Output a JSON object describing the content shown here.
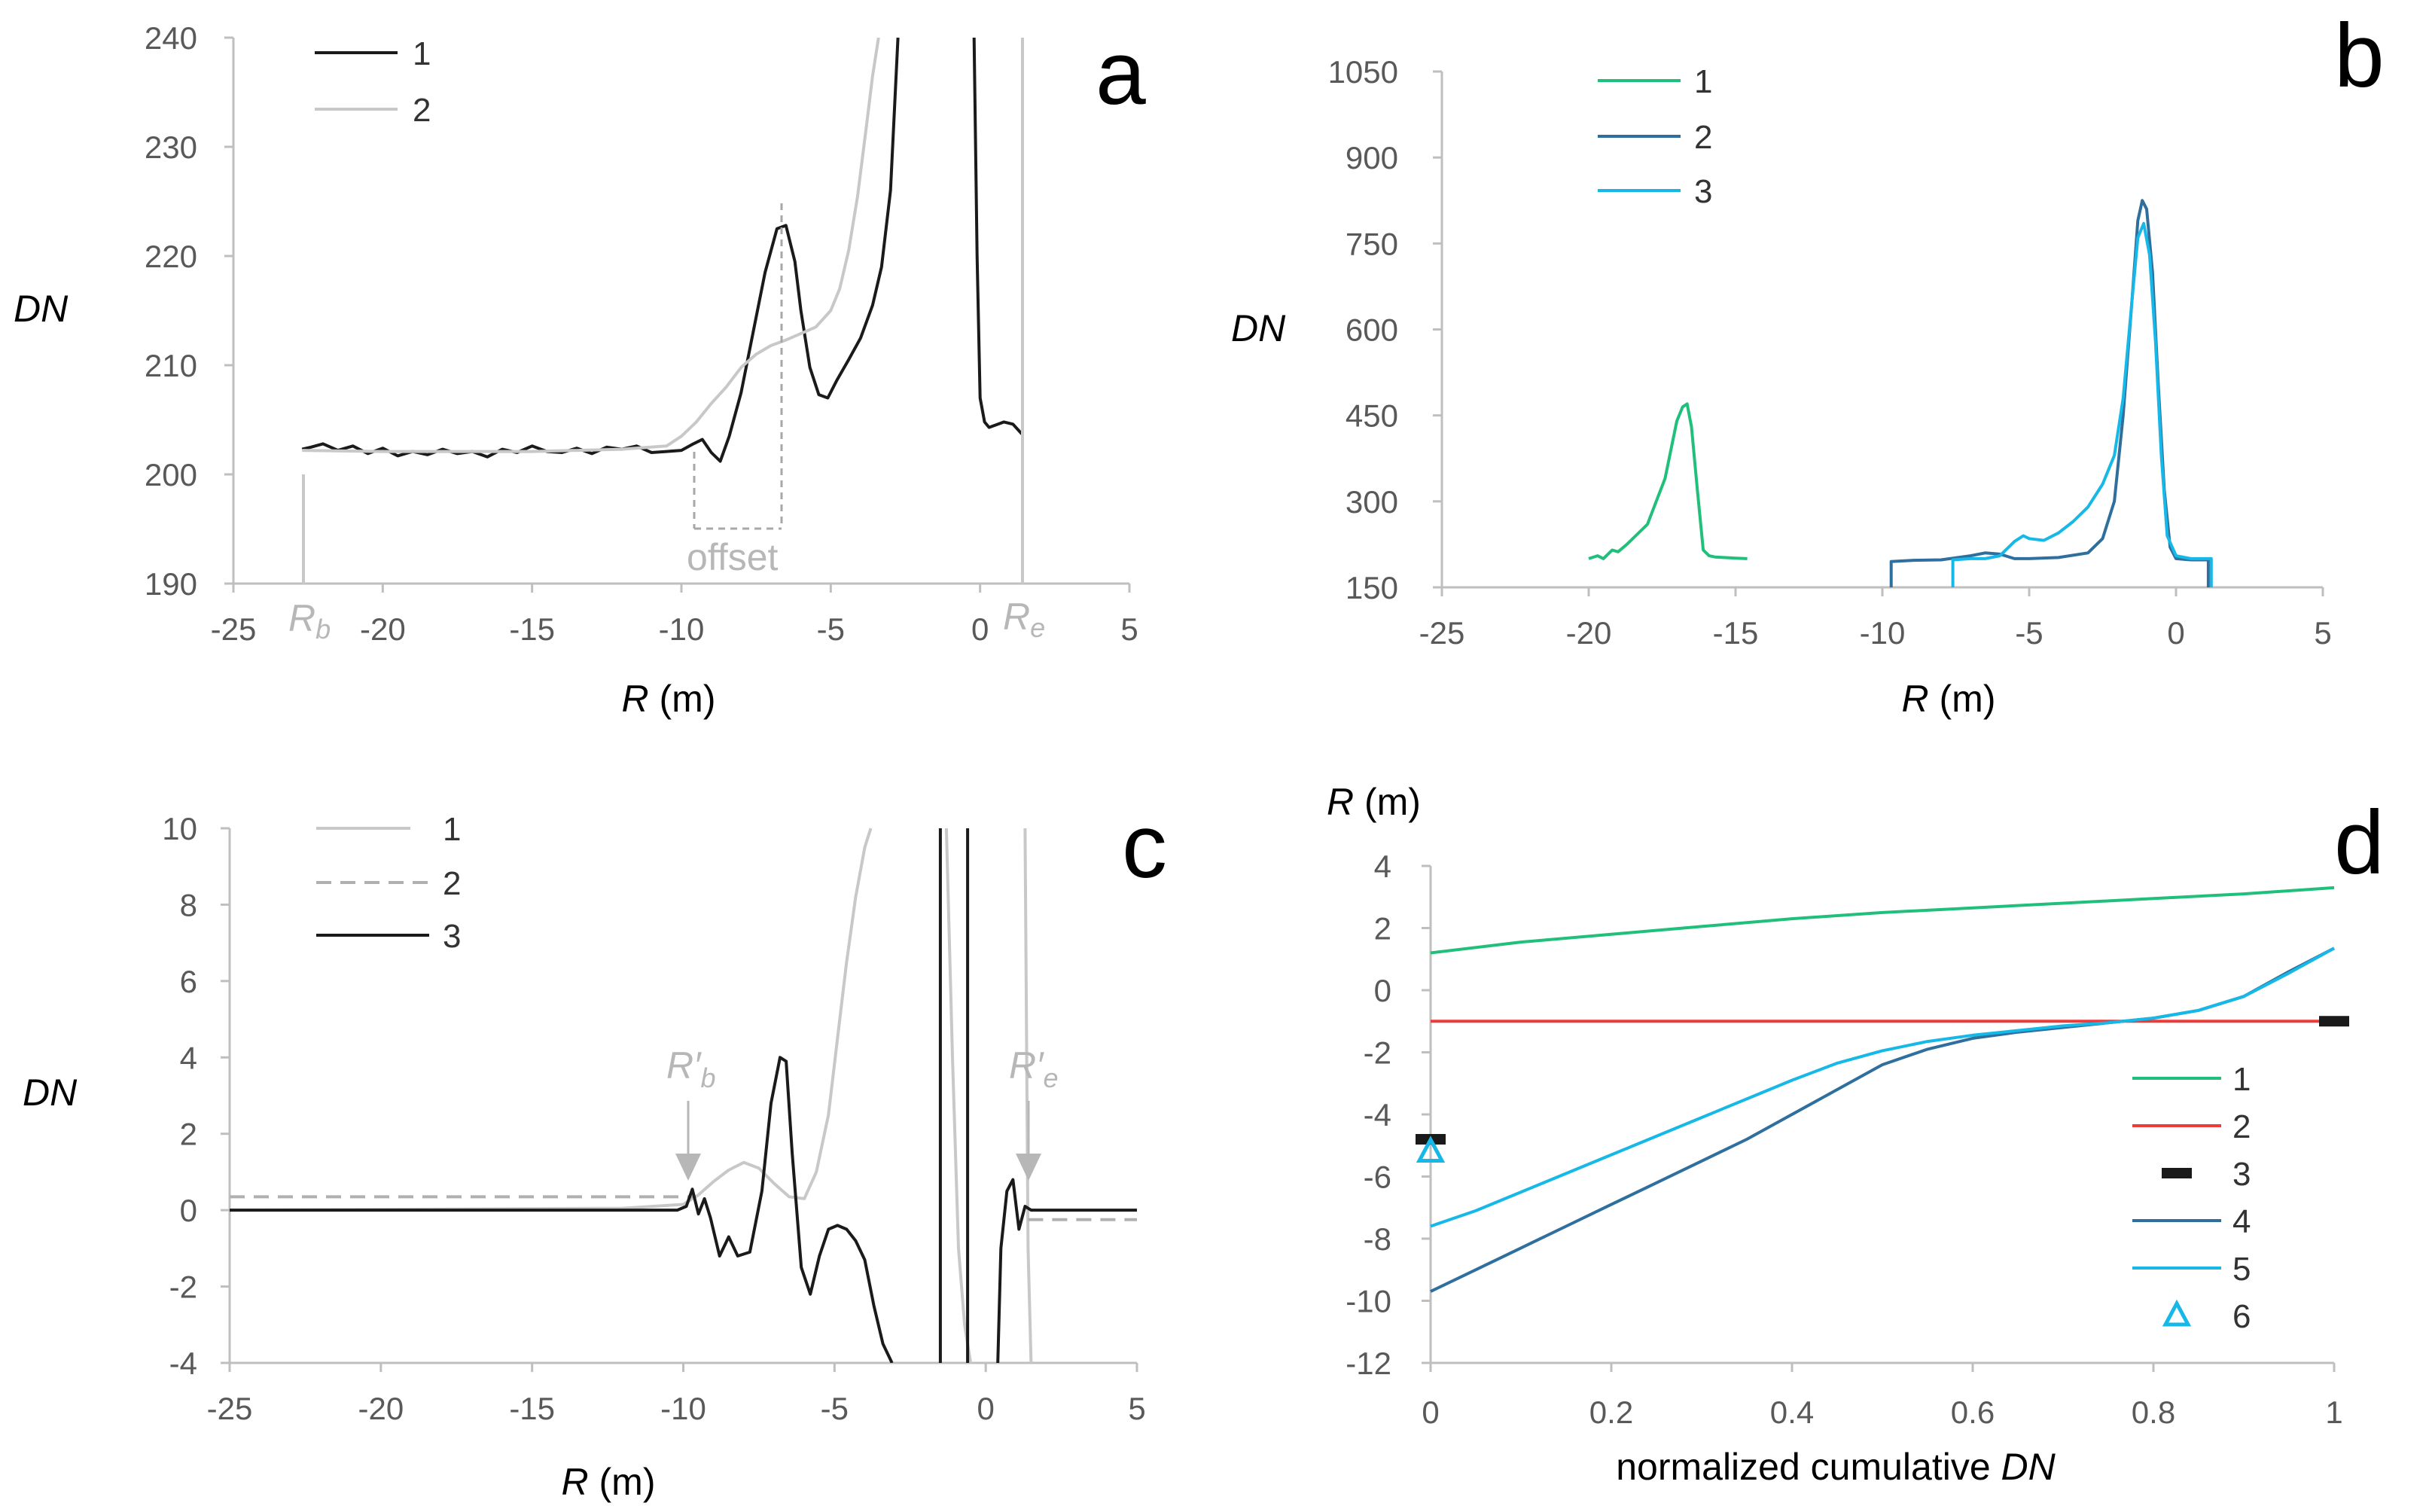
{
  "colors": {
    "black": "#1a1a1a",
    "lightgray": "#c8c8c8",
    "midgray": "#b0b0b0",
    "green": "#20c07a",
    "steel": "#2e6f9e",
    "cyan": "#16b8e8",
    "red": "#ef3a3a",
    "axis": "#bfbfbf",
    "tick": "#595959"
  },
  "chart_data": [
    {
      "panel": "a",
      "type": "line",
      "xlabel_var": "R",
      "xlabel_unit": " (m)",
      "ylabel": "DN",
      "xlim": [
        -25,
        5
      ],
      "ylim": [
        190,
        240
      ],
      "xticks": [
        -25,
        -20,
        -15,
        -10,
        -5,
        0,
        5
      ],
      "yticks": [
        190,
        200,
        210,
        220,
        230,
        240
      ],
      "legend_position": "top-left",
      "series": [
        {
          "name": "1",
          "color": "black",
          "x": [
            -22.7,
            -22.4,
            -22,
            -21.5,
            -21,
            -20.5,
            -20,
            -19.5,
            -19,
            -18.5,
            -18,
            -17.5,
            -17,
            -16.5,
            -16,
            -15.5,
            -15,
            -14.5,
            -14,
            -13.5,
            -13,
            -12.5,
            -12,
            -11.5,
            -11,
            -10.5,
            -10,
            -9.6,
            -9.3,
            -9,
            -8.7,
            -8.4,
            -8,
            -7.6,
            -7.2,
            -6.8,
            -6.5,
            -6.2,
            -6,
            -5.7,
            -5.4,
            -5.1,
            -4.8,
            -4.4,
            -4,
            -3.6,
            -3.3,
            -3,
            -2.75
          ],
          "y": [
            202.3,
            202.5,
            202.8,
            202.2,
            202.6,
            201.9,
            202.4,
            201.7,
            202.1,
            201.8,
            202.3,
            201.9,
            202.1,
            201.6,
            202.3,
            202.0,
            202.6,
            202.1,
            202.0,
            202.4,
            201.9,
            202.5,
            202.3,
            202.6,
            202.0,
            202.1,
            202.2,
            202.8,
            203.2,
            202.0,
            201.2,
            203.5,
            207.5,
            213.0,
            218.5,
            222.5,
            222.8,
            219.5,
            215.0,
            209.8,
            207.3,
            207.0,
            208.6,
            210.5,
            212.5,
            215.5,
            219.0,
            226.0,
            240.0
          ]
        },
        {
          "name": "1",
          "color": "black",
          "x": [
            -0.2,
            -0.1,
            0,
            0.15,
            0.3,
            0.5,
            0.8,
            1.1,
            1.4
          ],
          "y": [
            240,
            220,
            207,
            204.8,
            204.3,
            204.5,
            204.8,
            204.6,
            203.7
          ]
        },
        {
          "name": "2",
          "color": "lightgray",
          "x": [
            -22.7,
            -20,
            -15,
            -12,
            -10.5,
            -10,
            -9.5,
            -9,
            -8.5,
            -8,
            -7.5,
            -7,
            -6.5,
            -6,
            -5.5,
            -5,
            -4.7,
            -4.4,
            -4.1,
            -3.8,
            -3.6,
            -3.4
          ],
          "y": [
            202.2,
            202.1,
            202.1,
            202.3,
            202.6,
            203.5,
            204.8,
            206.5,
            208.0,
            209.8,
            211.0,
            211.8,
            212.3,
            212.9,
            213.5,
            215.0,
            217.0,
            220.5,
            225.5,
            232.0,
            236.5,
            240.0
          ]
        }
      ],
      "annotations": {
        "offset": "offset",
        "rb_main": "R",
        "rb_sub": "b",
        "re_main": "R",
        "re_sub": "e"
      }
    },
    {
      "panel": "b",
      "type": "line",
      "xlabel_var": "R",
      "xlabel_unit": " (m)",
      "ylabel": "DN",
      "xlim": [
        -25,
        5
      ],
      "ylim": [
        150,
        1050
      ],
      "xticks": [
        -25,
        -20,
        -15,
        -10,
        -5,
        0,
        5
      ],
      "yticks": [
        150,
        300,
        450,
        600,
        750,
        900,
        1050
      ],
      "legend_position": "top-left",
      "series": [
        {
          "name": "1",
          "color": "green",
          "x": [
            -20,
            -19.7,
            -19.5,
            -19.2,
            -19,
            -18.7,
            -18.4,
            -18,
            -17.7,
            -17.4,
            -17.2,
            -17,
            -16.8,
            -16.65,
            -16.5,
            -16.3,
            -16.1,
            -15.9,
            -15.7,
            -15.4,
            -15,
            -14.6
          ],
          "y": [
            200,
            205,
            200,
            215,
            212,
            225,
            240,
            260,
            300,
            340,
            390,
            440,
            465,
            470,
            430,
            320,
            215,
            205,
            203,
            202,
            201,
            200
          ]
        },
        {
          "name": "2",
          "color": "steel",
          "x": [
            -9.7,
            -9.7,
            -9,
            -8,
            -7,
            -6.5,
            -6,
            -5.5,
            -5,
            -4,
            -3,
            -2.5,
            -2.1,
            -1.8,
            -1.5,
            -1.3,
            -1.15,
            -1,
            -0.8,
            -0.6,
            -0.4,
            -0.2,
            0,
            0.5,
            1.1,
            1.1
          ],
          "y": [
            150,
            195,
            197,
            198,
            205,
            210,
            208,
            200,
            200,
            202,
            210,
            235,
            300,
            450,
            650,
            790,
            825,
            810,
            700,
            500,
            320,
            220,
            200,
            198,
            198,
            150
          ]
        },
        {
          "name": "3",
          "color": "cyan",
          "x": [
            -7.6,
            -7.6,
            -7,
            -6.5,
            -6,
            -5.7,
            -5.5,
            -5.2,
            -5,
            -4.5,
            -4,
            -3.5,
            -3,
            -2.5,
            -2.1,
            -1.8,
            -1.5,
            -1.3,
            -1.1,
            -0.9,
            -0.7,
            -0.5,
            -0.3,
            0,
            0.5,
            1.2,
            1.2
          ],
          "y": [
            150,
            198,
            200,
            200,
            205,
            220,
            230,
            240,
            235,
            232,
            245,
            265,
            290,
            330,
            380,
            480,
            650,
            760,
            785,
            730,
            580,
            380,
            240,
            205,
            200,
            200,
            150
          ]
        }
      ]
    },
    {
      "panel": "c",
      "type": "line",
      "xlabel_var": "R",
      "xlabel_unit": " (m)",
      "ylabel": "DN",
      "xlim": [
        -25,
        5
      ],
      "ylim": [
        -4,
        10
      ],
      "xticks": [
        -25,
        -20,
        -15,
        -10,
        -5,
        0,
        5
      ],
      "yticks": [
        -4,
        -2,
        0,
        2,
        4,
        6,
        8,
        10
      ],
      "legend_position": "top-left",
      "series": [
        {
          "name": "1",
          "color": "lightgray",
          "x": [
            -25,
            -12,
            -10,
            -9.5,
            -9,
            -8.5,
            -8,
            -7.5,
            -7,
            -6.5,
            -6,
            -5.6,
            -5.2,
            -4.9,
            -4.6,
            -4.3,
            -4,
            -3.8
          ],
          "y": [
            0,
            0.05,
            0.15,
            0.4,
            0.75,
            1.05,
            1.25,
            1.1,
            0.7,
            0.35,
            0.3,
            1.0,
            2.5,
            4.5,
            6.5,
            8.2,
            9.5,
            10
          ]
        },
        {
          "name": "1",
          "color": "lightgray",
          "x": [
            -1.3,
            -1.1,
            -0.9,
            -0.7,
            -0.5
          ],
          "y": [
            10,
            4,
            -1,
            -3,
            -4
          ]
        },
        {
          "name": "1",
          "color": "lightgray",
          "x": [
            1.3,
            1.4,
            1.5
          ],
          "y": [
            10,
            -1,
            -4
          ]
        },
        {
          "name": "2",
          "color": "midgray",
          "dashed": true,
          "x": [
            -25,
            -9.6
          ],
          "y": [
            0.35,
            0.35
          ]
        },
        {
          "name": "2",
          "color": "midgray",
          "dashed": true,
          "x": [
            1.4,
            5
          ],
          "y": [
            -0.25,
            -0.25
          ]
        },
        {
          "name": "3",
          "color": "black",
          "x": [
            -25,
            -12,
            -10.2,
            -9.9,
            -9.7,
            -9.5,
            -9.3,
            -9.1,
            -8.8,
            -8.5,
            -8.2,
            -7.8,
            -7.4,
            -7.1,
            -6.8,
            -6.6,
            -6.4,
            -6.1,
            -5.8,
            -5.5,
            -5.2,
            -4.9,
            -4.6,
            -4.3,
            -4,
            -3.7,
            -3.4,
            -3.1
          ],
          "y": [
            0,
            0,
            0,
            0.1,
            0.55,
            -0.1,
            0.3,
            -0.2,
            -1.2,
            -0.7,
            -1.2,
            -1.1,
            0.5,
            2.8,
            4.0,
            3.9,
            1.5,
            -1.5,
            -2.2,
            -1.2,
            -0.5,
            -0.4,
            -0.5,
            -0.8,
            -1.3,
            -2.5,
            -3.5,
            -4
          ]
        },
        {
          "name": "3",
          "color": "black",
          "x": [
            -1.5,
            -1.5
          ],
          "y": [
            10,
            -4
          ]
        },
        {
          "name": "3",
          "color": "black",
          "x": [
            -0.6,
            -0.6
          ],
          "y": [
            10,
            -4
          ]
        },
        {
          "name": "3",
          "color": "black",
          "x": [
            0.4,
            0.5,
            0.7,
            0.9,
            1.1,
            1.3,
            1.5,
            2,
            3,
            5
          ],
          "y": [
            -4,
            -1,
            0.5,
            0.8,
            -0.5,
            0.1,
            0,
            0,
            0,
            0
          ]
        }
      ],
      "annotations": {
        "rb_main": "R′",
        "rb_sub": "b",
        "re_main": "R′",
        "re_sub": "e"
      }
    },
    {
      "panel": "d",
      "type": "line",
      "xlabel": "normalized cumulative ",
      "xlabel_var": "DN",
      "ylabel_var": "R",
      "ylabel_unit": " (m)",
      "xlim": [
        0,
        1
      ],
      "ylim": [
        -12,
        4
      ],
      "xticks": [
        0,
        0.2,
        0.4,
        0.6,
        0.8,
        1
      ],
      "yticks": [
        -12,
        -10,
        -8,
        -6,
        -4,
        -2,
        0,
        2,
        4
      ],
      "legend_position": "bottom-right",
      "series": [
        {
          "name": "1",
          "color": "green",
          "x": [
            0,
            0.1,
            0.2,
            0.3,
            0.4,
            0.5,
            0.6,
            0.7,
            0.8,
            0.9,
            1.0
          ],
          "y": [
            1.2,
            1.55,
            1.8,
            2.05,
            2.3,
            2.5,
            2.65,
            2.8,
            2.95,
            3.1,
            3.3
          ]
        },
        {
          "name": "2",
          "color": "red",
          "x": [
            0,
            1.0
          ],
          "y": [
            -1.0,
            -1.0
          ]
        },
        {
          "name": "4",
          "color": "steel",
          "x": [
            0,
            0.05,
            0.1,
            0.15,
            0.2,
            0.25,
            0.3,
            0.35,
            0.4,
            0.45,
            0.5,
            0.55,
            0.6,
            0.65,
            0.7,
            0.75,
            0.8,
            0.85,
            0.9,
            0.95,
            1.0
          ],
          "y": [
            -9.7,
            -9.0,
            -8.3,
            -7.6,
            -6.9,
            -6.2,
            -5.5,
            -4.8,
            -4.0,
            -3.2,
            -2.4,
            -1.9,
            -1.55,
            -1.35,
            -1.2,
            -1.05,
            -0.9,
            -0.65,
            -0.2,
            0.6,
            1.35
          ]
        },
        {
          "name": "5",
          "color": "cyan",
          "x": [
            0,
            0.05,
            0.1,
            0.15,
            0.2,
            0.25,
            0.3,
            0.35,
            0.4,
            0.45,
            0.5,
            0.55,
            0.6,
            0.65,
            0.7,
            0.75,
            0.8,
            0.85,
            0.9,
            0.95,
            1.0
          ],
          "y": [
            -7.6,
            -7.1,
            -6.5,
            -5.9,
            -5.3,
            -4.7,
            -4.1,
            -3.5,
            -2.9,
            -2.35,
            -1.95,
            -1.65,
            -1.45,
            -1.3,
            -1.15,
            -1.05,
            -0.9,
            -0.65,
            -0.2,
            0.55,
            1.35
          ]
        }
      ],
      "markers": [
        {
          "name": "3",
          "shape": "dash",
          "color": "black",
          "x": 0,
          "y": -4.8
        },
        {
          "name": "3",
          "shape": "dash",
          "color": "black",
          "x": 1.0,
          "y": -1.0
        },
        {
          "name": "6",
          "shape": "triangle",
          "color": "cyan",
          "x": 0,
          "y": -5.2
        }
      ],
      "legend": [
        {
          "label": "1",
          "color": "green",
          "type": "line"
        },
        {
          "label": "2",
          "color": "red",
          "type": "line"
        },
        {
          "label": "3",
          "color": "black",
          "type": "dash"
        },
        {
          "label": "4",
          "color": "steel",
          "type": "line"
        },
        {
          "label": "5",
          "color": "cyan",
          "type": "line"
        },
        {
          "label": "6",
          "color": "cyan",
          "type": "triangle"
        }
      ]
    }
  ],
  "labels": {
    "a": "a",
    "b": "b",
    "c": "c",
    "d": "d"
  },
  "legend_a": [
    "1",
    "2"
  ],
  "legend_b": [
    "1",
    "2",
    "3"
  ],
  "legend_c": [
    "1",
    "2",
    "3"
  ]
}
